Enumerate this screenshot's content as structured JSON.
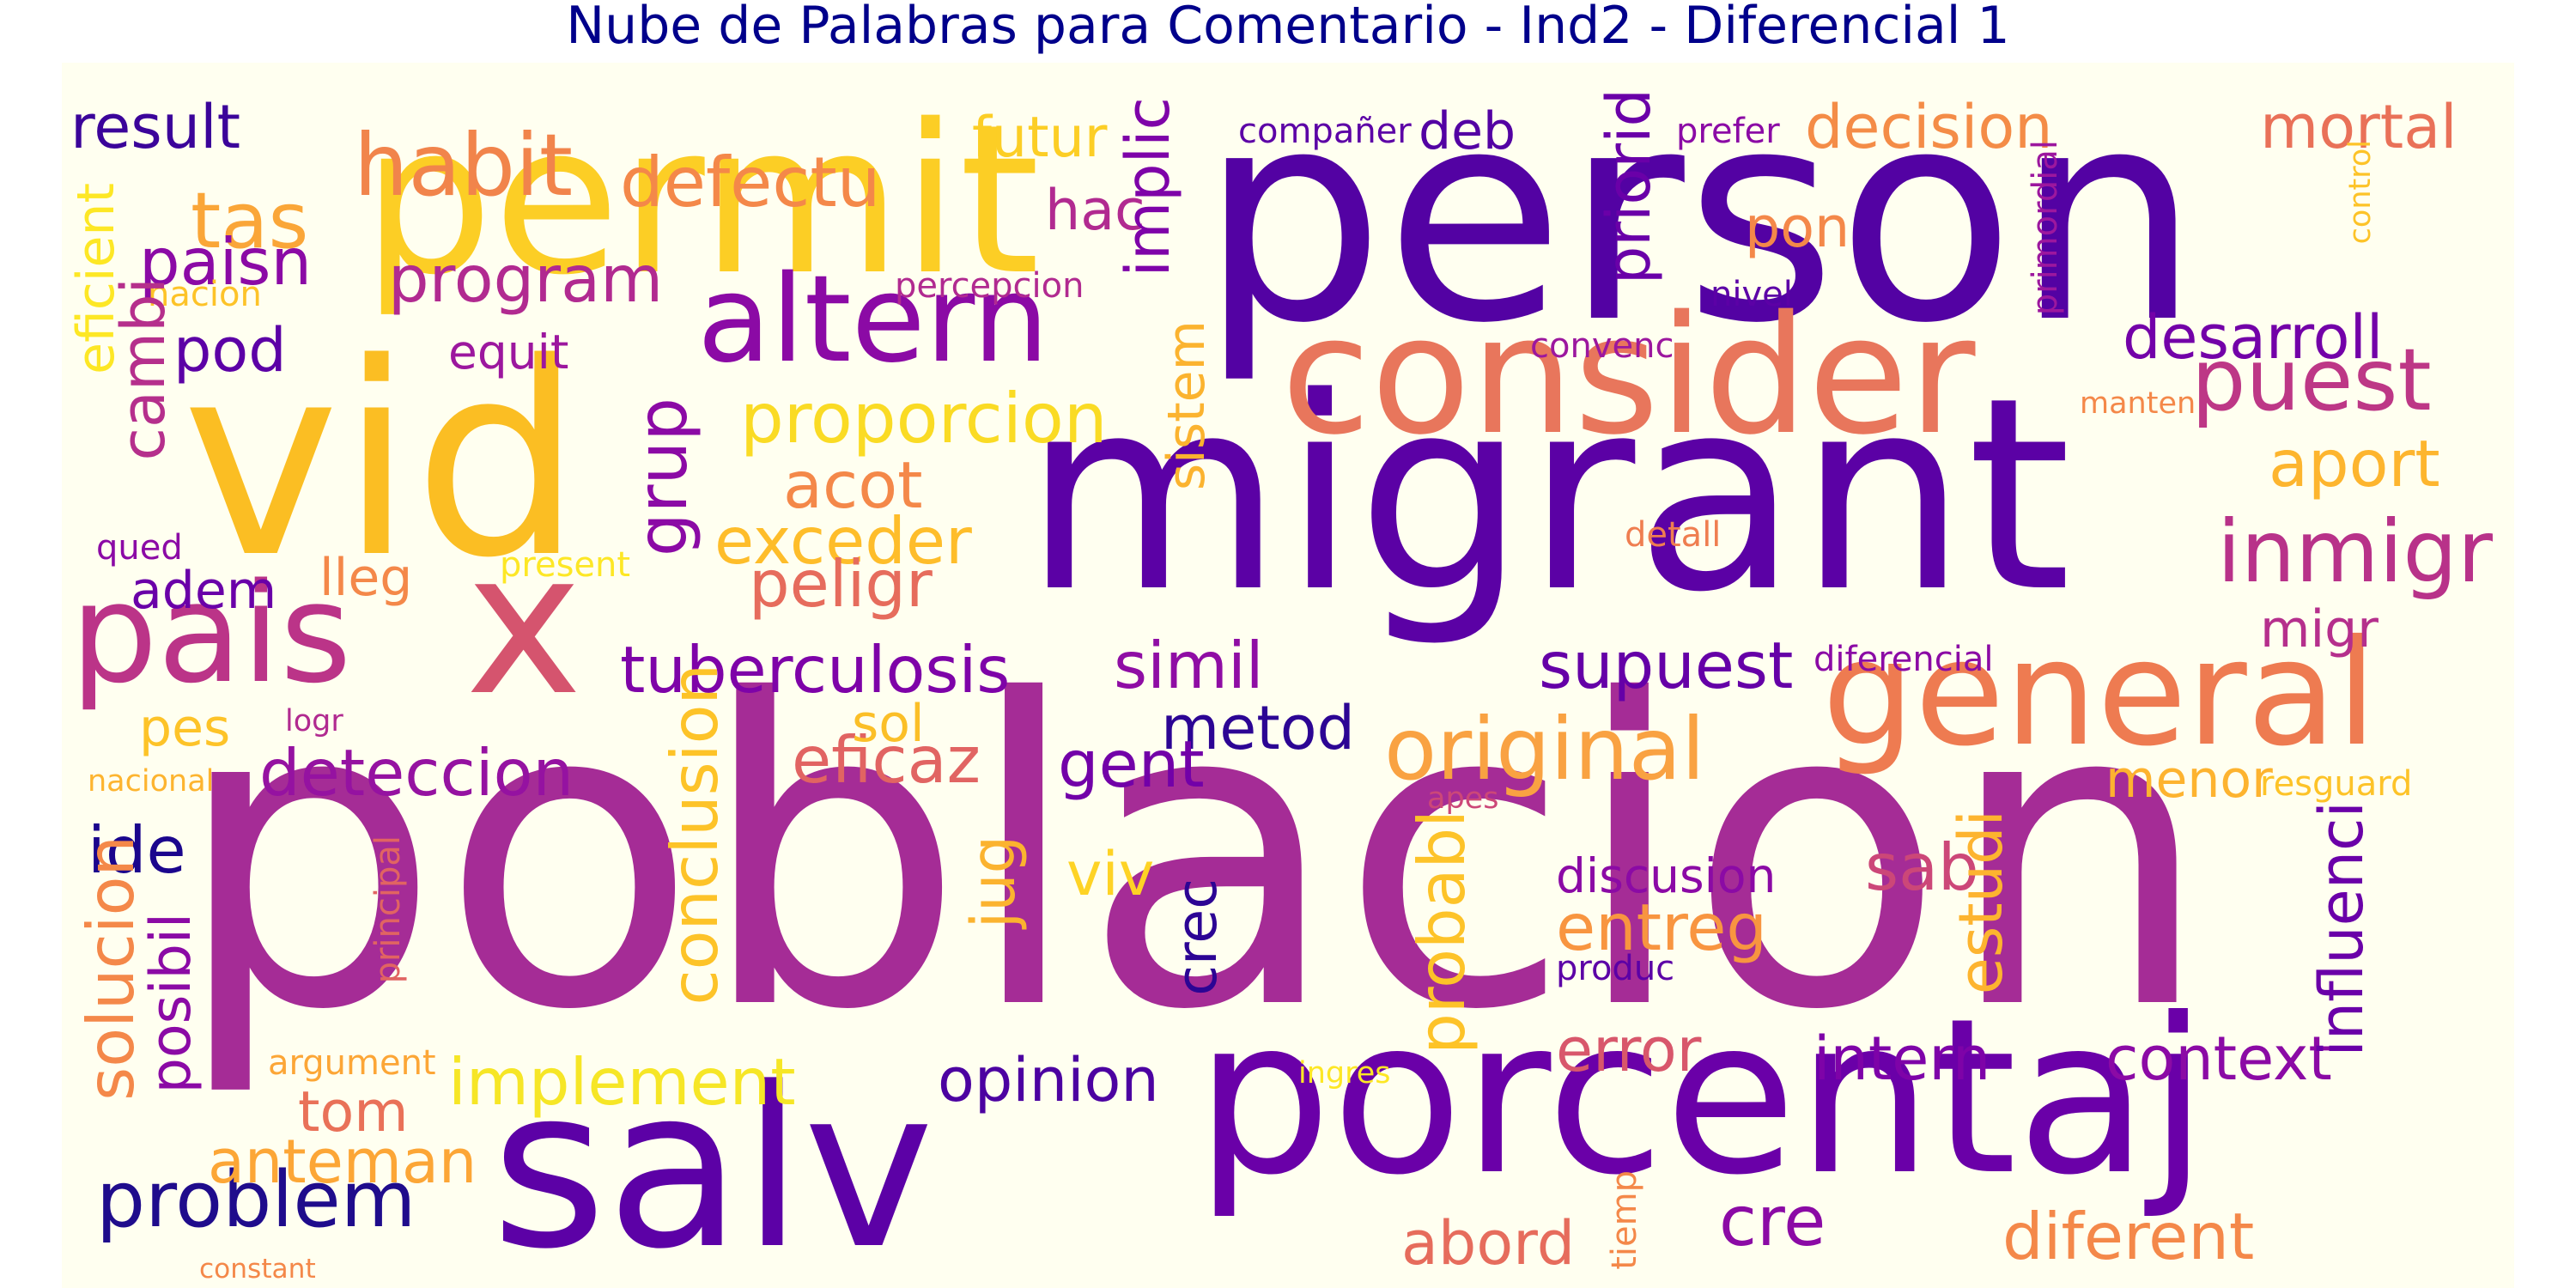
{
  "title": "Nube de Palabras para Comentario - Ind2 - Diferencial 1",
  "colors": {
    "background": "#fffff0",
    "title": "#00008b"
  },
  "words": [
    {
      "text": "poblacion",
      "color": "#a52c96"
    },
    {
      "text": "person",
      "color": "#5302a3"
    },
    {
      "text": "migrant",
      "color": "#5b01a5"
    },
    {
      "text": "vid",
      "color": "#fbbe23"
    },
    {
      "text": "salv",
      "color": "#5c01a6"
    },
    {
      "text": "porcentaj",
      "color": "#6a00a8"
    },
    {
      "text": "permit",
      "color": "#fcce25"
    },
    {
      "text": "consider",
      "color": "#e8765c"
    },
    {
      "text": "x",
      "color": "#d5546e"
    },
    {
      "text": "pais",
      "color": "#bb3488"
    },
    {
      "text": "general",
      "color": "#ee7b51"
    },
    {
      "text": "altern",
      "color": "#8b0aa5"
    },
    {
      "text": "habit",
      "color": "#f1844b"
    },
    {
      "text": "puest",
      "color": "#bd3786"
    },
    {
      "text": "inmigr",
      "color": "#b83289"
    },
    {
      "text": "original",
      "color": "#f9a242"
    },
    {
      "text": "tas",
      "color": "#faa638"
    },
    {
      "text": "problem",
      "color": "#1f0c8c"
    },
    {
      "text": "defectu",
      "color": "#f48849"
    },
    {
      "text": "proporcion",
      "color": "#fadb24"
    },
    {
      "text": "tuberculosis",
      "color": "#7e03a8"
    },
    {
      "text": "simil",
      "color": "#8f0da4"
    },
    {
      "text": "supuest",
      "color": "#6500a7"
    },
    {
      "text": "result",
      "color": "#3b049a"
    },
    {
      "text": "decision",
      "color": "#f48c47"
    },
    {
      "text": "mortal",
      "color": "#e97158"
    },
    {
      "text": "desarroll",
      "color": "#7301a8"
    },
    {
      "text": "aport",
      "color": "#fdb52e"
    },
    {
      "text": "deteccion",
      "color": "#9512a1"
    },
    {
      "text": "program",
      "color": "#b12a90"
    },
    {
      "text": "paisn",
      "color": "#8b0aa5"
    },
    {
      "text": "acot",
      "color": "#f48849"
    },
    {
      "text": "exceder",
      "color": "#febd2a"
    },
    {
      "text": "peligr",
      "color": "#e66c5c"
    },
    {
      "text": "metod",
      "color": "#2c0594"
    },
    {
      "text": "eficaz",
      "color": "#e16462"
    },
    {
      "text": "gent",
      "color": "#7201a8"
    },
    {
      "text": "implement",
      "color": "#f6e626"
    },
    {
      "text": "opinion",
      "color": "#4c02a1"
    },
    {
      "text": "error",
      "color": "#d8576b"
    },
    {
      "text": "intern",
      "color": "#7e03a8"
    },
    {
      "text": "context",
      "color": "#8b0aa5"
    },
    {
      "text": "entreg",
      "color": "#f89540"
    },
    {
      "text": "discusion",
      "color": "#8b0aa5"
    },
    {
      "text": "sab",
      "color": "#cc4778"
    },
    {
      "text": "diferent",
      "color": "#f48849"
    },
    {
      "text": "abord",
      "color": "#e66c5c"
    },
    {
      "text": "cre",
      "color": "#8b0aa5"
    },
    {
      "text": "anteman",
      "color": "#fca636"
    },
    {
      "text": "tom",
      "color": "#e97158"
    },
    {
      "text": "ide",
      "color": "#1b068d"
    },
    {
      "text": "pod",
      "color": "#5c01a6"
    },
    {
      "text": "adem",
      "color": "#6a00a8"
    },
    {
      "text": "lleg",
      "color": "#f48849"
    },
    {
      "text": "sol",
      "color": "#fbbf27"
    },
    {
      "text": "pes",
      "color": "#fdc328"
    },
    {
      "text": "viv",
      "color": "#fed325"
    },
    {
      "text": "equit",
      "color": "#9c179e"
    },
    {
      "text": "futur",
      "color": "#fcce25"
    },
    {
      "text": "hac",
      "color": "#b12a90"
    },
    {
      "text": "deb",
      "color": "#5302a3"
    },
    {
      "text": "pon",
      "color": "#f48849"
    },
    {
      "text": "migr",
      "color": "#b52f8c"
    },
    {
      "text": "menor",
      "color": "#fdb32f"
    },
    {
      "text": "compañer",
      "color": "#5c01a6"
    },
    {
      "text": "prefer",
      "color": "#8b0aa5"
    },
    {
      "text": "percepcion",
      "color": "#b12a90"
    },
    {
      "text": "nivel",
      "color": "#5c01a6"
    },
    {
      "text": "convenc",
      "color": "#9c179e"
    },
    {
      "text": "manten",
      "color": "#f48849"
    },
    {
      "text": "detall",
      "color": "#ef7e50"
    },
    {
      "text": "diferencial",
      "color": "#8b0aa5"
    },
    {
      "text": "resguard",
      "color": "#fdc328"
    },
    {
      "text": "apes",
      "color": "#cc4778"
    },
    {
      "text": "produc",
      "color": "#5c01a6"
    },
    {
      "text": "ingres",
      "color": "#fde725"
    },
    {
      "text": "logr",
      "color": "#b12a90"
    },
    {
      "text": "nacional",
      "color": "#fdb42f"
    },
    {
      "text": "argument",
      "color": "#fca636"
    },
    {
      "text": "constant",
      "color": "#f48849"
    },
    {
      "text": "present",
      "color": "#fde725"
    },
    {
      "text": "qued",
      "color": "#8b0aa5"
    },
    {
      "text": "nacion",
      "color": "#fdc328"
    },
    {
      "text": "implic",
      "color": "#7e03a8"
    },
    {
      "text": "priorid",
      "color": "#6a00a8"
    },
    {
      "text": "grup",
      "color": "#8b0aa5"
    },
    {
      "text": "sistem",
      "color": "#fbb32f"
    },
    {
      "text": "jug",
      "color": "#fbb32f"
    },
    {
      "text": "crec",
      "color": "#2c0594"
    },
    {
      "text": "conclusion",
      "color": "#fdc328"
    },
    {
      "text": "probabl",
      "color": "#fdc328"
    },
    {
      "text": "estudi",
      "color": "#fdb42f"
    },
    {
      "text": "influenci",
      "color": "#6a00a8"
    },
    {
      "text": "cambi",
      "color": "#b52f8c"
    },
    {
      "text": "eficient",
      "color": "#fde725"
    },
    {
      "text": "solucion",
      "color": "#f48849"
    },
    {
      "text": "posibil",
      "color": "#8b0aa5"
    },
    {
      "text": "principal",
      "color": "#e16462"
    },
    {
      "text": "tiemp",
      "color": "#f48849"
    },
    {
      "text": "primordial",
      "color": "#9c179e"
    },
    {
      "text": "control",
      "color": "#fdc328"
    }
  ]
}
